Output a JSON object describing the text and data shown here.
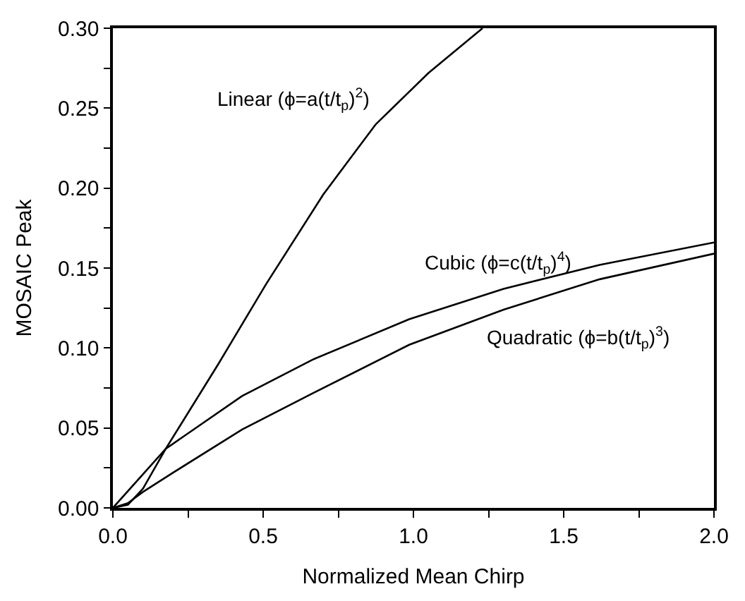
{
  "chart_data": {
    "type": "line",
    "xlabel": "Normalized Mean Chirp",
    "ylabel": "MOSAIC Peak",
    "xlim": [
      0,
      2
    ],
    "ylim": [
      0,
      0.3
    ],
    "xticks": [
      {
        "value": 0,
        "label": "0.0"
      },
      {
        "value": 0.25,
        "label": null
      },
      {
        "value": 0.5,
        "label": "0.5"
      },
      {
        "value": 0.75,
        "label": null
      },
      {
        "value": 1,
        "label": "1.0"
      },
      {
        "value": 1.25,
        "label": null
      },
      {
        "value": 1.5,
        "label": "1.5"
      },
      {
        "value": 1.75,
        "label": null
      },
      {
        "value": 2,
        "label": "2.0"
      }
    ],
    "yticks": [
      {
        "value": 0,
        "label": "0.00"
      },
      {
        "value": 0.025,
        "label": null
      },
      {
        "value": 0.05,
        "label": "0.05"
      },
      {
        "value": 0.075,
        "label": null
      },
      {
        "value": 0.1,
        "label": "0.10"
      },
      {
        "value": 0.125,
        "label": null
      },
      {
        "value": 0.15,
        "label": "0.15"
      },
      {
        "value": 0.175,
        "label": null
      },
      {
        "value": 0.2,
        "label": "0.20"
      },
      {
        "value": 0.225,
        "label": null
      },
      {
        "value": 0.25,
        "label": "0.25"
      },
      {
        "value": 0.275,
        "label": null
      },
      {
        "value": 0.3,
        "label": "0.30"
      }
    ],
    "legend": false,
    "marker": "none",
    "line_style": "solid",
    "series": [
      {
        "name": "Linear (ϕ=a(t/t$_{p}$)$^{2}$)",
        "color": "#000000",
        "x": [
          0,
          0.05,
          0.1,
          0.176,
          0.351,
          0.51,
          0.7,
          0.875,
          1.05,
          1.23
        ],
        "values": [
          0,
          0.002,
          0.012,
          0.037,
          0.09,
          0.14,
          0.196,
          0.24,
          0.272,
          0.3
        ]
      },
      {
        "name": "Cubic (ϕ=c(t/t$_{p}$)$^{4}$)",
        "color": "#000000",
        "x": [
          0,
          0.1,
          0.176,
          0.43,
          0.668,
          0.986,
          1.3,
          1.62,
          2.0
        ],
        "values": [
          0,
          0.021,
          0.037,
          0.07,
          0.093,
          0.118,
          0.137,
          0.152,
          0.166
        ]
      },
      {
        "name": "Quadratic (ϕ=b(t/t$_{p}$)$^{3}$)",
        "color": "#000000",
        "x": [
          0,
          0.05,
          0.1,
          0.2,
          0.43,
          0.668,
          0.986,
          1.3,
          1.62,
          2.0
        ],
        "values": [
          0,
          0.003,
          0.01,
          0.022,
          0.049,
          0.072,
          0.102,
          0.124,
          0.143,
          0.159
        ]
      }
    ]
  }
}
